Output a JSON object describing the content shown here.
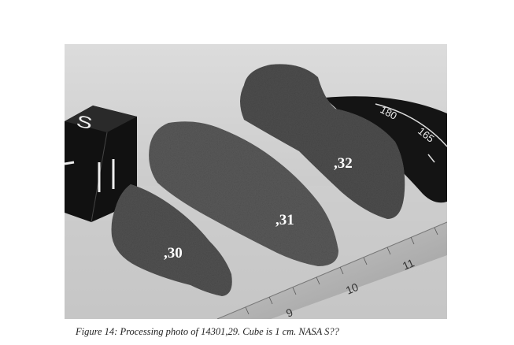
{
  "figure": {
    "caption": "Figure 14:  Processing photo of 14301,29.  Cube is 1 cm.  NASA S??",
    "sample_labels": [
      ",30",
      ",31",
      ",32"
    ],
    "cube_letter": "S",
    "ruler_numbers": [
      "9",
      "10",
      "11"
    ],
    "dial_numbers": [
      "180",
      "165"
    ]
  }
}
